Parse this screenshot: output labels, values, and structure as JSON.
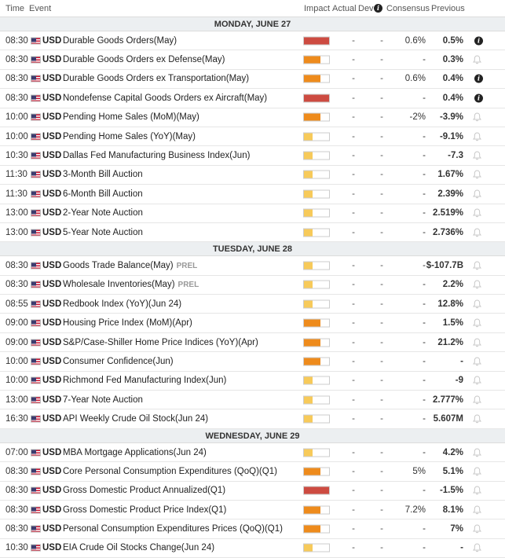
{
  "header": {
    "time": "Time",
    "event": "Event",
    "impact": "Impact",
    "actual": "Actual",
    "dev": "Dev",
    "consensus": "Consensus",
    "previous": "Previous"
  },
  "colors": {
    "high": "#cd4b41",
    "medium": "#ee8b1c",
    "low": "#f7ca5a"
  },
  "days": [
    {
      "label": "MONDAY, JUNE 27",
      "events": [
        {
          "time": "08:30",
          "cur": "USD",
          "name": "Durable Goods Orders(May)",
          "prel": "",
          "impact": "high",
          "impact_level": 1.0,
          "actual": "-",
          "dev": "-",
          "consensus": "0.6%",
          "previous": "0.5%",
          "note": "info-icon"
        },
        {
          "time": "08:30",
          "cur": "USD",
          "name": "Durable Goods Orders ex Defense(May)",
          "prel": "",
          "impact": "medium",
          "impact_level": 0.67,
          "actual": "-",
          "dev": "-",
          "consensus": "-",
          "previous": "0.3%",
          "note": "bell-icon"
        },
        {
          "time": "08:30",
          "cur": "USD",
          "name": "Durable Goods Orders ex Transportation(May)",
          "prel": "",
          "impact": "medium",
          "impact_level": 0.67,
          "actual": "-",
          "dev": "-",
          "consensus": "0.6%",
          "previous": "0.4%",
          "note": "info-icon"
        },
        {
          "time": "08:30",
          "cur": "USD",
          "name": "Nondefense Capital Goods Orders ex Aircraft(May)",
          "prel": "",
          "impact": "high",
          "impact_level": 1.0,
          "actual": "-",
          "dev": "-",
          "consensus": "-",
          "previous": "0.4%",
          "note": "info-icon"
        },
        {
          "time": "10:00",
          "cur": "USD",
          "name": "Pending Home Sales (MoM)(May)",
          "prel": "",
          "impact": "medium",
          "impact_level": 0.67,
          "actual": "-",
          "dev": "-",
          "consensus": "-2%",
          "previous": "-3.9%",
          "note": "bell-icon"
        },
        {
          "time": "10:00",
          "cur": "USD",
          "name": "Pending Home Sales (YoY)(May)",
          "prel": "",
          "impact": "low",
          "impact_level": 0.33,
          "actual": "-",
          "dev": "-",
          "consensus": "-",
          "previous": "-9.1%",
          "note": "bell-icon"
        },
        {
          "time": "10:30",
          "cur": "USD",
          "name": "Dallas Fed Manufacturing Business Index(Jun)",
          "prel": "",
          "impact": "low",
          "impact_level": 0.33,
          "actual": "-",
          "dev": "-",
          "consensus": "-",
          "previous": "-7.3",
          "note": "bell-icon"
        },
        {
          "time": "11:30",
          "cur": "USD",
          "name": "3-Month Bill Auction",
          "prel": "",
          "impact": "low",
          "impact_level": 0.33,
          "actual": "-",
          "dev": "-",
          "consensus": "-",
          "previous": "1.67%",
          "note": "bell-icon"
        },
        {
          "time": "11:30",
          "cur": "USD",
          "name": "6-Month Bill Auction",
          "prel": "",
          "impact": "low",
          "impact_level": 0.33,
          "actual": "-",
          "dev": "-",
          "consensus": "-",
          "previous": "2.39%",
          "note": "bell-icon"
        },
        {
          "time": "13:00",
          "cur": "USD",
          "name": "2-Year Note Auction",
          "prel": "",
          "impact": "low",
          "impact_level": 0.33,
          "actual": "-",
          "dev": "-",
          "consensus": "-",
          "previous": "2.519%",
          "note": "bell-icon"
        },
        {
          "time": "13:00",
          "cur": "USD",
          "name": "5-Year Note Auction",
          "prel": "",
          "impact": "low",
          "impact_level": 0.33,
          "actual": "-",
          "dev": "-",
          "consensus": "-",
          "previous": "2.736%",
          "note": "bell-icon"
        }
      ]
    },
    {
      "label": "TUESDAY, JUNE 28",
      "events": [
        {
          "time": "08:30",
          "cur": "USD",
          "name": "Goods Trade Balance(May)",
          "prel": "PREL",
          "impact": "low",
          "impact_level": 0.33,
          "actual": "-",
          "dev": "-",
          "consensus": "-",
          "previous": "$-107.7B",
          "note": "bell-icon"
        },
        {
          "time": "08:30",
          "cur": "USD",
          "name": "Wholesale Inventories(May)",
          "prel": "PREL",
          "impact": "low",
          "impact_level": 0.33,
          "actual": "-",
          "dev": "-",
          "consensus": "-",
          "previous": "2.2%",
          "note": "bell-icon"
        },
        {
          "time": "08:55",
          "cur": "USD",
          "name": "Redbook Index (YoY)(Jun 24)",
          "prel": "",
          "impact": "low",
          "impact_level": 0.33,
          "actual": "-",
          "dev": "-",
          "consensus": "-",
          "previous": "12.8%",
          "note": "bell-icon"
        },
        {
          "time": "09:00",
          "cur": "USD",
          "name": "Housing Price Index (MoM)(Apr)",
          "prel": "",
          "impact": "medium",
          "impact_level": 0.67,
          "actual": "-",
          "dev": "-",
          "consensus": "-",
          "previous": "1.5%",
          "note": "bell-icon"
        },
        {
          "time": "09:00",
          "cur": "USD",
          "name": "S&P/Case-Shiller Home Price Indices (YoY)(Apr)",
          "prel": "",
          "impact": "medium",
          "impact_level": 0.67,
          "actual": "-",
          "dev": "-",
          "consensus": "-",
          "previous": "21.2%",
          "note": "bell-icon"
        },
        {
          "time": "10:00",
          "cur": "USD",
          "name": "Consumer Confidence(Jun)",
          "prel": "",
          "impact": "medium",
          "impact_level": 0.67,
          "actual": "-",
          "dev": "-",
          "consensus": "-",
          "previous": "-",
          "note": "bell-icon"
        },
        {
          "time": "10:00",
          "cur": "USD",
          "name": "Richmond Fed Manufacturing Index(Jun)",
          "prel": "",
          "impact": "low",
          "impact_level": 0.33,
          "actual": "-",
          "dev": "-",
          "consensus": "-",
          "previous": "-9",
          "note": "bell-icon"
        },
        {
          "time": "13:00",
          "cur": "USD",
          "name": "7-Year Note Auction",
          "prel": "",
          "impact": "low",
          "impact_level": 0.33,
          "actual": "-",
          "dev": "-",
          "consensus": "-",
          "previous": "2.777%",
          "note": "bell-icon"
        },
        {
          "time": "16:30",
          "cur": "USD",
          "name": "API Weekly Crude Oil Stock(Jun 24)",
          "prel": "",
          "impact": "low",
          "impact_level": 0.33,
          "actual": "-",
          "dev": "-",
          "consensus": "-",
          "previous": "5.607M",
          "note": "bell-icon"
        }
      ]
    },
    {
      "label": "WEDNESDAY, JUNE 29",
      "events": [
        {
          "time": "07:00",
          "cur": "USD",
          "name": "MBA Mortgage Applications(Jun 24)",
          "prel": "",
          "impact": "low",
          "impact_level": 0.33,
          "actual": "-",
          "dev": "-",
          "consensus": "-",
          "previous": "4.2%",
          "note": "bell-icon"
        },
        {
          "time": "08:30",
          "cur": "USD",
          "name": "Core Personal Consumption Expenditures (QoQ)(Q1)",
          "prel": "",
          "impact": "medium",
          "impact_level": 0.67,
          "actual": "-",
          "dev": "-",
          "consensus": "5%",
          "previous": "5.1%",
          "note": "bell-icon"
        },
        {
          "time": "08:30",
          "cur": "USD",
          "name": "Gross Domestic Product Annualized(Q1)",
          "prel": "",
          "impact": "high",
          "impact_level": 1.0,
          "actual": "-",
          "dev": "-",
          "consensus": "-",
          "previous": "-1.5%",
          "note": "bell-icon"
        },
        {
          "time": "08:30",
          "cur": "USD",
          "name": "Gross Domestic Product Price Index(Q1)",
          "prel": "",
          "impact": "medium",
          "impact_level": 0.67,
          "actual": "-",
          "dev": "-",
          "consensus": "7.2%",
          "previous": "8.1%",
          "note": "bell-icon"
        },
        {
          "time": "08:30",
          "cur": "USD",
          "name": "Personal Consumption Expenditures Prices (QoQ)(Q1)",
          "prel": "",
          "impact": "medium",
          "impact_level": 0.67,
          "actual": "-",
          "dev": "-",
          "consensus": "-",
          "previous": "7%",
          "note": "bell-icon"
        },
        {
          "time": "10:30",
          "cur": "USD",
          "name": "EIA Crude Oil Stocks Change(Jun 24)",
          "prel": "",
          "impact": "low",
          "impact_level": 0.33,
          "actual": "-",
          "dev": "-",
          "consensus": "-",
          "previous": "-",
          "note": "bell-icon"
        }
      ]
    }
  ]
}
